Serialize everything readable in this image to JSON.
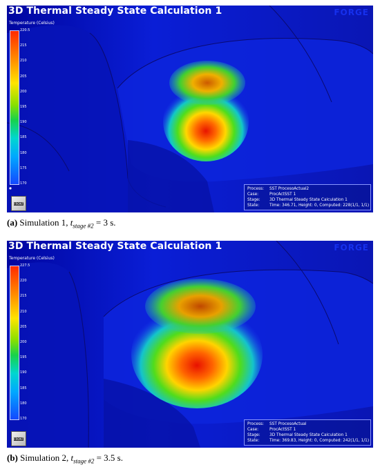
{
  "panels": [
    {
      "title": "3D Thermal Steady State Calculation 1",
      "logo": "FORGE",
      "legend_title": "Temperature (Celsius)",
      "ticks": [
        "220.5",
        "215",
        "210",
        "205",
        "200",
        "195",
        "190",
        "185",
        "180",
        "175",
        "170"
      ],
      "info": {
        "process_key": "Process:",
        "process": "SST ProcesoActual2",
        "case_key": "Case:",
        "case": "ProcActSST 1",
        "stage_key": "Stage:",
        "stage": "3D Thermal Steady State Calculation 1",
        "state_key": "State:",
        "state": "Time: 346.71, Height: 0, Computed: 228(1/1, 1/1)"
      },
      "cube_label": "FRONT",
      "caption": {
        "label": "(a)",
        "text": " Simulation 1, ",
        "var": "t",
        "sub": "stage #2",
        "eq": " = 3 s."
      }
    },
    {
      "title": "3D Thermal Steady State Calculation 1",
      "logo": "FORGE",
      "legend_title": "Temperature (Celsius)",
      "ticks": [
        "227.5",
        "220",
        "215",
        "210",
        "205",
        "200",
        "195",
        "190",
        "185",
        "180",
        "170"
      ],
      "info": {
        "process_key": "Process:",
        "process": "SST ProcesoActual",
        "case_key": "Case:",
        "case": "ProcActSST 1",
        "stage_key": "Stage:",
        "stage": "3D Thermal Steady State Calculation 1",
        "state_key": "State:",
        "state": "Time: 369.83, Height: 0, Computed: 242(1/1, 1/1)"
      },
      "cube_label": "FRONT",
      "caption": {
        "label": "(b)",
        "text": " Simulation 2, ",
        "var": "t",
        "sub": "stage #2",
        "eq": " = 3.5 s."
      }
    }
  ]
}
